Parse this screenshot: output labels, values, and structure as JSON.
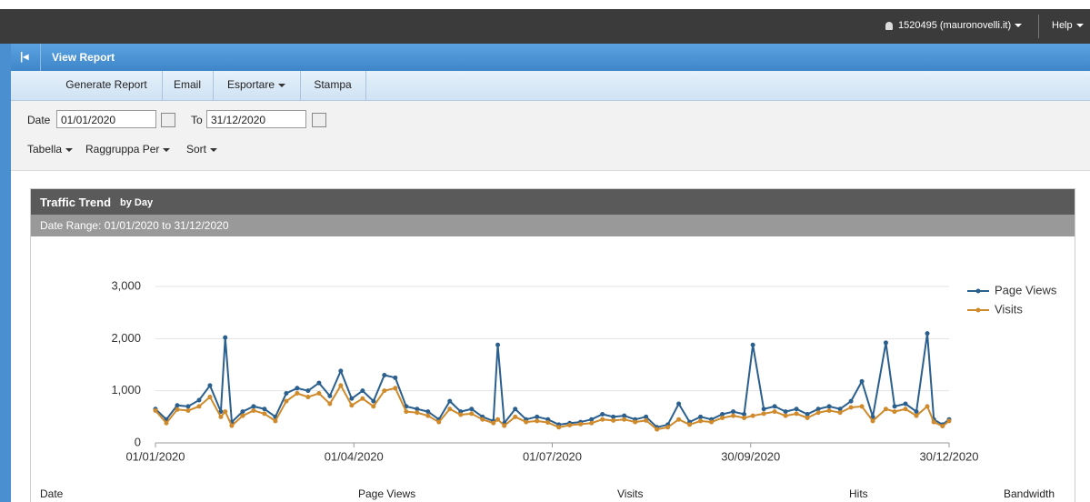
{
  "header": {
    "user": "1520495 (mauronovelli.it)",
    "help": "Help"
  },
  "page_title": "View Report",
  "toolbar": [
    "Generate Report",
    "Email",
    "Esportare",
    "Stampa"
  ],
  "filters": {
    "date_label": "Date",
    "date_from": "01/01/2020",
    "to_label": "To",
    "date_to": "31/12/2020",
    "menus": [
      "Tabella",
      "Raggruppa Per",
      "Sort"
    ]
  },
  "panel": {
    "title": "Traffic Trend",
    "title_suffix": "by Day",
    "date_range": "Date Range: 01/01/2020 to 31/12/2020"
  },
  "chart_data": {
    "type": "line",
    "x": [
      "01/01/2020",
      "06/01/2020",
      "11/01/2020",
      "16/01/2020",
      "21/01/2020",
      "26/01/2020",
      "31/01/2020",
      "02/02/2020",
      "05/02/2020",
      "10/02/2020",
      "15/02/2020",
      "20/02/2020",
      "25/02/2020",
      "01/03/2020",
      "06/03/2020",
      "11/03/2020",
      "16/03/2020",
      "21/03/2020",
      "26/03/2020",
      "31/03/2020",
      "05/04/2020",
      "10/04/2020",
      "15/04/2020",
      "20/04/2020",
      "25/04/2020",
      "30/04/2020",
      "05/05/2020",
      "10/05/2020",
      "15/05/2020",
      "20/05/2020",
      "25/05/2020",
      "30/05/2020",
      "04/06/2020",
      "06/06/2020",
      "09/06/2020",
      "14/06/2020",
      "19/06/2020",
      "24/06/2020",
      "29/06/2020",
      "04/07/2020",
      "09/07/2020",
      "14/07/2020",
      "19/07/2020",
      "24/07/2020",
      "29/07/2020",
      "03/08/2020",
      "08/08/2020",
      "13/08/2020",
      "18/08/2020",
      "23/08/2020",
      "28/08/2020",
      "02/09/2020",
      "07/09/2020",
      "12/09/2020",
      "17/09/2020",
      "22/09/2020",
      "27/09/2020",
      "01/10/2020",
      "06/10/2020",
      "11/10/2020",
      "16/10/2020",
      "21/10/2020",
      "26/10/2020",
      "31/10/2020",
      "05/11/2020",
      "10/11/2020",
      "15/11/2020",
      "20/11/2020",
      "25/11/2020",
      "01/12/2020",
      "05/12/2020",
      "10/12/2020",
      "15/12/2020",
      "20/12/2020",
      "23/12/2020",
      "27/12/2020",
      "30/12/2020"
    ],
    "series": [
      {
        "name": "Page Views",
        "color": "#2b5f8e",
        "values": [
          650,
          450,
          720,
          700,
          820,
          1100,
          600,
          2020,
          400,
          600,
          700,
          650,
          500,
          950,
          1050,
          1000,
          1150,
          900,
          1380,
          850,
          1000,
          800,
          1300,
          1250,
          700,
          650,
          600,
          450,
          800,
          600,
          650,
          500,
          420,
          1880,
          380,
          650,
          450,
          500,
          450,
          350,
          380,
          400,
          450,
          550,
          500,
          520,
          450,
          500,
          300,
          350,
          750,
          400,
          500,
          450,
          550,
          600,
          550,
          1880,
          650,
          700,
          600,
          650,
          550,
          650,
          700,
          650,
          800,
          1180,
          500,
          1920,
          700,
          750,
          600,
          2100,
          450,
          350,
          450
        ]
      },
      {
        "name": "Visits",
        "color": "#cf8a2c",
        "values": [
          620,
          380,
          640,
          620,
          700,
          880,
          500,
          600,
          330,
          520,
          620,
          560,
          420,
          800,
          950,
          880,
          950,
          750,
          1100,
          720,
          850,
          700,
          1000,
          1050,
          600,
          580,
          520,
          400,
          650,
          540,
          560,
          450,
          380,
          450,
          330,
          500,
          400,
          420,
          390,
          300,
          340,
          360,
          380,
          450,
          430,
          450,
          400,
          430,
          260,
          300,
          450,
          350,
          420,
          400,
          480,
          520,
          480,
          520,
          560,
          600,
          520,
          560,
          480,
          580,
          620,
          580,
          680,
          700,
          420,
          650,
          600,
          650,
          520,
          700,
          400,
          320,
          420
        ]
      }
    ],
    "xlim": [
      "01/01/2020",
      "30/12/2020"
    ],
    "xticks": [
      "01/01/2020",
      "01/04/2020",
      "01/07/2020",
      "30/09/2020",
      "30/12/2020"
    ],
    "ylim": [
      0,
      3000
    ],
    "yticks": [
      0,
      {
        "value": 1000,
        "label": "1,000"
      },
      {
        "value": 2000,
        "label": "2,000"
      },
      {
        "value": 3000,
        "label": "3,000"
      }
    ],
    "grid": true,
    "legend": "right"
  },
  "table": {
    "columns": [
      "Date",
      "Page Views",
      "Visits",
      "Hits",
      "Bandwidth"
    ]
  }
}
